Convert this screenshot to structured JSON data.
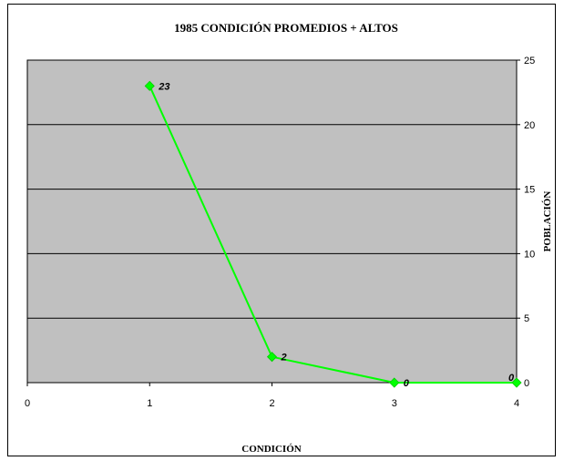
{
  "chart_data": {
    "type": "scatter",
    "title": "1985 CONDICIÓN PROMEDIOS +  ALTOS",
    "xlabel": "CONDICIÓN",
    "ylabel": "POBLACIÓN",
    "xlim": [
      0,
      4
    ],
    "ylim": [
      0,
      25
    ],
    "x_ticks": [
      "0",
      "1",
      "2",
      "3",
      "4"
    ],
    "y_ticks": [
      "0",
      "5",
      "10",
      "15",
      "20",
      "25"
    ],
    "grid": "horizontal",
    "y_axis_side": "right",
    "plot_background": "#c0c0c0",
    "series": [
      {
        "color": "#00ff00",
        "marker": "diamond",
        "points": [
          {
            "x": 1,
            "y": 23,
            "label": "23"
          },
          {
            "x": 2,
            "y": 2,
            "label": "2"
          },
          {
            "x": 3,
            "y": 0,
            "label": "0"
          },
          {
            "x": 4,
            "y": 0,
            "label": "0"
          }
        ]
      }
    ]
  }
}
